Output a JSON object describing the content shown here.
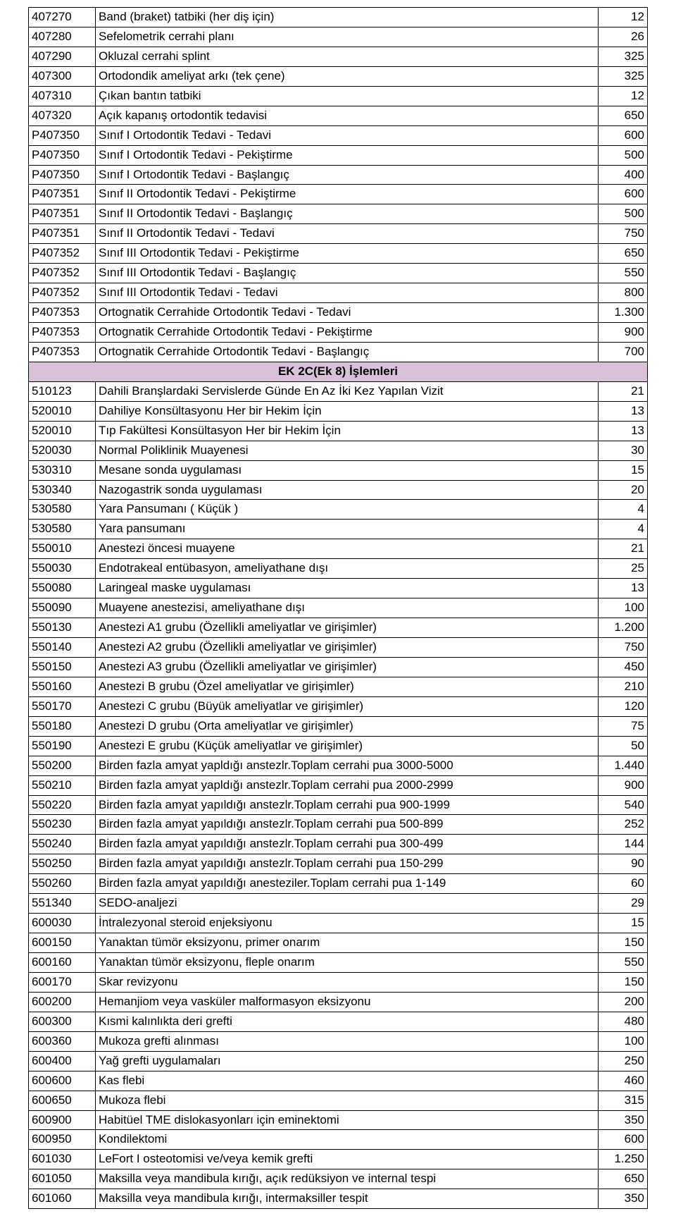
{
  "section_header": "EK 2C(Ek 8) İşlemleri",
  "colors": {
    "section_bg": "#d9c2d9",
    "border": "#000000",
    "text": "#000000",
    "background": "#ffffff"
  },
  "rows": [
    {
      "code": "407270",
      "desc": "Band (braket) tatbiki (her diş için)",
      "val": "12"
    },
    {
      "code": "407280",
      "desc": "Sefelometrik cerrahi planı",
      "val": "26"
    },
    {
      "code": "407290",
      "desc": "Okluzal cerrahi splint",
      "val": "325"
    },
    {
      "code": "407300",
      "desc": "Ortodondik ameliyat arkı (tek çene)",
      "val": "325"
    },
    {
      "code": "407310",
      "desc": "Çıkan bantın tatbiki",
      "val": "12"
    },
    {
      "code": "407320",
      "desc": "Açık kapanış ortodontik tedavisi",
      "val": "650"
    },
    {
      "code": "P407350",
      "desc": "Sınıf I Ortodontik Tedavi - Tedavi",
      "val": "600"
    },
    {
      "code": "P407350",
      "desc": "Sınıf I Ortodontik Tedavi - Pekiştirme",
      "val": "500"
    },
    {
      "code": "P407350",
      "desc": "Sınıf I Ortodontik Tedavi - Başlangıç",
      "val": "400"
    },
    {
      "code": "P407351",
      "desc": "Sınıf II Ortodontik Tedavi - Pekiştirme",
      "val": "600"
    },
    {
      "code": "P407351",
      "desc": "Sınıf II Ortodontik Tedavi - Başlangıç",
      "val": "500"
    },
    {
      "code": "P407351",
      "desc": "Sınıf II Ortodontik Tedavi - Tedavi",
      "val": "750"
    },
    {
      "code": "P407352",
      "desc": "Sınıf III Ortodontik Tedavi - Pekiştirme",
      "val": "650"
    },
    {
      "code": "P407352",
      "desc": "Sınıf III Ortodontik Tedavi - Başlangıç",
      "val": "550"
    },
    {
      "code": "P407352",
      "desc": "Sınıf III Ortodontik Tedavi - Tedavi",
      "val": "800"
    },
    {
      "code": "P407353",
      "desc": "Ortognatik Cerrahide Ortodontik Tedavi - Tedavi",
      "val": "1.300"
    },
    {
      "code": "P407353",
      "desc": "Ortognatik Cerrahide Ortodontik Tedavi - Pekiştirme",
      "val": "900"
    },
    {
      "code": "P407353",
      "desc": "Ortognatik Cerrahide Ortodontik Tedavi - Başlangıç",
      "val": "700"
    },
    {
      "section": true
    },
    {
      "code": "510123",
      "desc": "Dahili Branşlardaki Servislerde Günde En Az İki Kez Yapılan Vizit",
      "val": "21"
    },
    {
      "code": "520010",
      "desc": "Dahiliye Konsültasyonu Her bir Hekim İçin",
      "val": "13"
    },
    {
      "code": "520010",
      "desc": "Tıp Fakültesi Konsültasyon Her bir Hekim İçin",
      "val": "13"
    },
    {
      "code": "520030",
      "desc": "Normal Poliklinik Muayenesi",
      "val": "30"
    },
    {
      "code": "530310",
      "desc": "Mesane sonda uygulaması",
      "val": "15"
    },
    {
      "code": "530340",
      "desc": "Nazogastrik sonda uygulaması",
      "val": "20"
    },
    {
      "code": "530580",
      "desc": "Yara Pansumanı ( Küçük )",
      "val": "4"
    },
    {
      "code": "530580",
      "desc": "Yara pansumanı",
      "val": "4"
    },
    {
      "code": "550010",
      "desc": "Anestezi öncesi muayene",
      "val": "21"
    },
    {
      "code": "550030",
      "desc": "Endotrakeal entübasyon, ameliyathane dışı",
      "val": "25"
    },
    {
      "code": "550080",
      "desc": "Laringeal maske uygulaması",
      "val": "13"
    },
    {
      "code": "550090",
      "desc": "Muayene anestezisi, ameliyathane dışı",
      "val": "100"
    },
    {
      "code": "550130",
      "desc": "Anestezi A1 grubu (Özellikli ameliyatlar ve girişimler)",
      "val": "1.200"
    },
    {
      "code": "550140",
      "desc": "Anestezi A2 grubu (Özellikli ameliyatlar ve girişimler)",
      "val": "750"
    },
    {
      "code": "550150",
      "desc": "Anestezi A3 grubu (Özellikli ameliyatlar ve girişimler)",
      "val": "450"
    },
    {
      "code": "550160",
      "desc": "Anestezi B grubu (Özel ameliyatlar ve girişimler)",
      "val": "210"
    },
    {
      "code": "550170",
      "desc": "Anestezi C grubu (Büyük ameliyatlar ve girişimler)",
      "val": "120"
    },
    {
      "code": "550180",
      "desc": "Anestezi D grubu (Orta ameliyatlar ve girişimler)",
      "val": "75"
    },
    {
      "code": "550190",
      "desc": "Anestezi E grubu (Küçük ameliyatlar ve girişimler)",
      "val": "50"
    },
    {
      "code": "550200",
      "desc": "Birden fazla amyat yapldığı anstezlr.Toplam cerrahi pua 3000-5000",
      "val": "1.440"
    },
    {
      "code": "550210",
      "desc": "Birden fazla amyat yapldığı anstezlr.Toplam cerrahi pua 2000-2999",
      "val": "900"
    },
    {
      "code": "550220",
      "desc": "Birden fazla amyat yapıldığı anstezlr.Toplam cerrahi pua 900-1999",
      "val": "540"
    },
    {
      "code": "550230",
      "desc": "Birden fazla amyat yapıldığı anstezlr.Toplam cerrahi pua 500-899",
      "val": "252"
    },
    {
      "code": "550240",
      "desc": "Birden fazla amyat yapıldığı anstezlr.Toplam cerrahi pua 300-499",
      "val": "144"
    },
    {
      "code": "550250",
      "desc": "Birden fazla amyat yapıldığı anstezlr.Toplam cerrahi pua 150-299",
      "val": "90"
    },
    {
      "code": "550260",
      "desc": "Birden fazla amyat yapıldığı anesteziler.Toplam cerrahi pua 1-149",
      "val": "60"
    },
    {
      "code": "551340",
      "desc": "SEDO-analjezi",
      "val": "29"
    },
    {
      "code": "600030",
      "desc": "İntralezyonal steroid enjeksiyonu",
      "val": "15"
    },
    {
      "code": "600150",
      "desc": "Yanaktan tümör eksizyonu, primer onarım",
      "val": "150"
    },
    {
      "code": "600160",
      "desc": "Yanaktan tümör eksizyonu, fleple onarım",
      "val": "550"
    },
    {
      "code": "600170",
      "desc": "Skar revizyonu",
      "val": "150"
    },
    {
      "code": "600200",
      "desc": "Hemanjiom veya vasküler malformasyon eksizyonu",
      "val": "200"
    },
    {
      "code": "600300",
      "desc": "Kısmi kalınlıkta deri grefti",
      "val": "480"
    },
    {
      "code": "600360",
      "desc": "Mukoza grefti alınması",
      "val": "100"
    },
    {
      "code": "600400",
      "desc": "Yağ grefti uygulamaları",
      "val": "250"
    },
    {
      "code": "600600",
      "desc": "Kas flebi",
      "val": "460"
    },
    {
      "code": "600650",
      "desc": "Mukoza flebi",
      "val": "315"
    },
    {
      "code": "600900",
      "desc": "Habitüel TME dislokasyonları için eminektomi",
      "val": "350"
    },
    {
      "code": "600950",
      "desc": "Kondilektomi",
      "val": "600"
    },
    {
      "code": "601030",
      "desc": "LeFort I osteotomisi ve/veya  kemik grefti",
      "val": "1.250"
    },
    {
      "code": "601050",
      "desc": "Maksilla veya mandibula kırığı, açık redüksiyon ve internal tespi",
      "val": "650"
    },
    {
      "code": "601060",
      "desc": "Maksilla veya mandibula kırığı, intermaksiller tespit",
      "val": "350"
    }
  ]
}
